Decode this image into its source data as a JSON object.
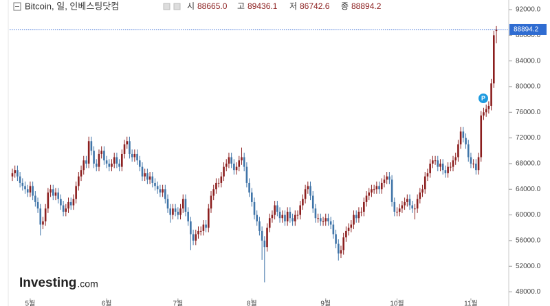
{
  "chart_data": {
    "type": "candlestick",
    "title": "Bitcoin, 일, 인베스팅닷컴",
    "header_labels": [
      "시",
      "고",
      "저",
      "종"
    ],
    "last_value_labels": [
      "88665.0",
      "89436.1",
      "86742.6",
      "88894.2"
    ],
    "brand": [
      "Investing",
      ".com"
    ],
    "marker": "P",
    "up_color": "#8b1e1e",
    "down_color": "#3f74a8",
    "ylim": [
      47200,
      93500
    ],
    "yticks": [
      {
        "value": 48000,
        "label": "48000.0"
      },
      {
        "value": 52000,
        "label": "52000.0"
      },
      {
        "value": 56000,
        "label": "56000.0"
      },
      {
        "value": 60000,
        "label": "60000.0"
      },
      {
        "value": 64000,
        "label": "64000.0"
      },
      {
        "value": 68000,
        "label": "68000.0"
      },
      {
        "value": 72000,
        "label": "72000.0"
      },
      {
        "value": 76000,
        "label": "76000.0"
      },
      {
        "value": 80000,
        "label": "80000.0"
      },
      {
        "value": 84000,
        "label": "84000.0"
      },
      {
        "value": 88000,
        "label": "88000.0"
      },
      {
        "value": 92000,
        "label": "92000.0"
      }
    ],
    "categories": [
      null,
      null,
      null,
      null,
      null,
      null,
      null,
      "5월",
      null,
      null,
      null,
      null,
      null,
      null,
      null,
      null,
      null,
      null,
      null,
      null,
      null,
      null,
      null,
      null,
      null,
      null,
      null,
      null,
      null,
      null,
      null,
      null,
      null,
      null,
      null,
      null,
      null,
      "6월",
      null,
      null,
      null,
      null,
      null,
      null,
      null,
      null,
      null,
      null,
      null,
      null,
      null,
      null,
      null,
      null,
      null,
      null,
      null,
      null,
      null,
      null,
      null,
      null,
      null,
      null,
      null,
      "7월",
      null,
      null,
      null,
      null,
      null,
      null,
      null,
      null,
      null,
      null,
      null,
      null,
      null,
      null,
      null,
      null,
      null,
      null,
      null,
      null,
      null,
      null,
      null,
      null,
      null,
      null,
      null,
      null,
      "8월",
      null,
      null,
      null,
      null,
      null,
      null,
      null,
      null,
      null,
      null,
      null,
      null,
      null,
      null,
      null,
      null,
      null,
      null,
      null,
      null,
      null,
      null,
      null,
      null,
      null,
      null,
      null,
      null,
      "9월",
      null,
      null,
      null,
      null,
      null,
      null,
      null,
      null,
      null,
      null,
      null,
      null,
      null,
      null,
      null,
      null,
      null,
      null,
      null,
      null,
      null,
      null,
      null,
      null,
      null,
      null,
      null,
      "10월",
      null,
      null,
      null,
      null,
      null,
      null,
      null,
      null,
      null,
      null,
      null,
      null,
      null,
      null,
      null,
      null,
      null,
      null,
      null,
      null,
      null,
      null,
      null,
      null,
      null,
      null,
      null,
      null,
      "11월",
      null,
      null,
      null,
      null,
      null,
      null,
      null,
      null,
      null,
      null
    ],
    "open": [
      66000,
      66500,
      67000,
      66000,
      65000,
      64500,
      64000,
      63500,
      64500,
      63000,
      62000,
      61000,
      58500,
      59000,
      61000,
      63500,
      64000,
      63000,
      63500,
      62500,
      61500,
      60500,
      61000,
      62000,
      61500,
      62500,
      64500,
      66000,
      67000,
      68500,
      68000,
      71500,
      70000,
      68000,
      67500,
      69500,
      70000,
      68500,
      68000,
      67500,
      68000,
      69000,
      68000,
      67500,
      69500,
      71000,
      71500,
      69500,
      69000,
      69500,
      68500,
      67500,
      66000,
      66500,
      65500,
      66000,
      65000,
      64500,
      64000,
      63500,
      64000,
      62500,
      61000,
      60000,
      61000,
      60500,
      60000,
      61000,
      62500,
      60500,
      59000,
      57000,
      56000,
      57000,
      57500,
      57500,
      58500,
      58000,
      61000,
      63000,
      64000,
      65000,
      65000,
      66000,
      67500,
      68000,
      69000,
      68000,
      67000,
      67500,
      68500,
      69000,
      67500,
      65000,
      63500,
      62000,
      60000,
      59000,
      57500,
      56000,
      55000,
      58000,
      59500,
      60000,
      61500,
      60500,
      59500,
      60000,
      59000,
      60500,
      59500,
      59000,
      60000,
      60000,
      61500,
      62500,
      64000,
      64500,
      63000,
      61000,
      59500,
      59500,
      59000,
      59000,
      59500,
      59000,
      58500,
      57000,
      55500,
      54000,
      54500,
      56500,
      57500,
      58000,
      58500,
      60000,
      59500,
      60500,
      60500,
      62000,
      63000,
      63500,
      64000,
      64000,
      64500,
      64000,
      65000,
      65500,
      66000,
      65500,
      62000,
      60500,
      60500,
      61000,
      61500,
      62000,
      62500,
      61500,
      61000,
      61000,
      62500,
      63500,
      64000,
      66000,
      66500,
      68000,
      68500,
      68500,
      67500,
      68000,
      67000,
      66500,
      67500,
      67500,
      68500,
      69000,
      71000,
      73000,
      72000,
      71000,
      69000,
      68000,
      68000,
      67000,
      69000,
      75500,
      76000,
      76500,
      77000,
      80500,
      88665.0
    ],
    "high": [
      67200,
      67700,
      67700,
      66700,
      65700,
      65200,
      64700,
      65200,
      65200,
      63700,
      62700,
      61700,
      59700,
      61700,
      64200,
      64700,
      64700,
      64200,
      64200,
      63200,
      62200,
      61700,
      62700,
      62700,
      63200,
      65200,
      66700,
      67700,
      69200,
      69200,
      72200,
      72200,
      70700,
      68700,
      70200,
      70700,
      70700,
      69200,
      68700,
      68700,
      69700,
      69700,
      68700,
      70200,
      71700,
      72200,
      72200,
      70200,
      70200,
      70200,
      69200,
      68200,
      67200,
      67200,
      66700,
      66700,
      65700,
      65200,
      64700,
      64700,
      64700,
      63200,
      61700,
      61700,
      61700,
      61200,
      61700,
      63200,
      63200,
      61200,
      59700,
      57700,
      57700,
      58200,
      58200,
      59200,
      59200,
      61700,
      63700,
      64700,
      65700,
      65700,
      66700,
      68200,
      68700,
      69700,
      69700,
      68700,
      68200,
      69200,
      70500,
      69700,
      68200,
      65700,
      64200,
      62700,
      60700,
      59700,
      58200,
      56700,
      58700,
      60200,
      60700,
      62200,
      62200,
      61200,
      60700,
      60700,
      61200,
      61200,
      60200,
      60700,
      60700,
      62200,
      63200,
      64700,
      65200,
      65200,
      63700,
      61700,
      60200,
      60200,
      59700,
      60200,
      60200,
      59700,
      59200,
      57700,
      56200,
      55200,
      57200,
      58200,
      58700,
      59200,
      60700,
      60700,
      61200,
      61200,
      62700,
      63700,
      64200,
      64700,
      64700,
      65200,
      65200,
      65700,
      66200,
      66700,
      66700,
      66200,
      62700,
      61200,
      61700,
      62200,
      62700,
      63200,
      63200,
      62200,
      61700,
      63200,
      64200,
      64700,
      66700,
      67200,
      68700,
      69200,
      69200,
      69200,
      68700,
      68700,
      67700,
      68200,
      68200,
      69200,
      69700,
      71700,
      73700,
      73700,
      72700,
      71700,
      69700,
      68700,
      68700,
      69700,
      76200,
      76700,
      77200,
      77700,
      81200,
      88700,
      89436.1
    ],
    "low": [
      65300,
      65800,
      65300,
      64300,
      63800,
      63300,
      62800,
      62800,
      62300,
      61300,
      60300,
      56800,
      57800,
      58300,
      60300,
      62800,
      62300,
      62300,
      61800,
      60800,
      59800,
      59800,
      60300,
      60800,
      60800,
      61800,
      63800,
      65300,
      66300,
      67300,
      67300,
      69300,
      67300,
      66800,
      66800,
      68800,
      67800,
      67300,
      66800,
      66800,
      67300,
      67300,
      66800,
      66800,
      68800,
      70300,
      68800,
      68300,
      68300,
      67800,
      66800,
      65300,
      65300,
      64800,
      64800,
      64300,
      63800,
      63300,
      62800,
      62800,
      61800,
      60300,
      58800,
      59300,
      59800,
      59300,
      59300,
      60300,
      59800,
      58300,
      54500,
      55300,
      55300,
      56300,
      56800,
      56800,
      57300,
      57300,
      60300,
      62300,
      63300,
      64300,
      64300,
      65300,
      66800,
      67300,
      67300,
      66300,
      66300,
      66800,
      67800,
      66800,
      64300,
      62800,
      61300,
      59300,
      58300,
      56800,
      53000,
      49500,
      54300,
      57300,
      58800,
      59300,
      59800,
      58800,
      58800,
      58300,
      58300,
      58800,
      58300,
      58300,
      59300,
      59300,
      60800,
      61800,
      63300,
      62300,
      60300,
      58800,
      58800,
      58300,
      58300,
      58300,
      58300,
      57800,
      56300,
      54800,
      52900,
      53300,
      53800,
      55800,
      56800,
      57300,
      57800,
      58800,
      58800,
      59800,
      59800,
      61300,
      62300,
      62800,
      63300,
      63300,
      63300,
      63300,
      64300,
      64800,
      64800,
      61300,
      59800,
      59800,
      59800,
      60300,
      60800,
      61300,
      60800,
      60300,
      59300,
      60300,
      61800,
      62800,
      63300,
      65300,
      65800,
      67300,
      67800,
      66800,
      66800,
      66300,
      65800,
      65800,
      66800,
      66800,
      67800,
      68300,
      70300,
      71300,
      70300,
      68300,
      67300,
      67300,
      66300,
      66300,
      68300,
      74800,
      75300,
      75800,
      76300,
      79800,
      86742.6
    ],
    "close": [
      66500,
      67000,
      66000,
      65000,
      64500,
      64000,
      63500,
      64500,
      63000,
      62000,
      61000,
      58500,
      59000,
      61000,
      63500,
      64000,
      63000,
      63500,
      62500,
      61500,
      60500,
      61000,
      62000,
      61500,
      62500,
      64500,
      66000,
      67000,
      68500,
      68000,
      71500,
      70000,
      68000,
      67500,
      69500,
      70000,
      68500,
      68000,
      67500,
      68000,
      69000,
      68000,
      67500,
      69500,
      71000,
      71500,
      69500,
      69000,
      69500,
      68500,
      67500,
      66000,
      66500,
      65500,
      66000,
      65000,
      64500,
      64000,
      63500,
      64000,
      62500,
      61000,
      60000,
      61000,
      60500,
      60000,
      61000,
      62500,
      60500,
      59000,
      57000,
      56000,
      57000,
      57500,
      57500,
      58500,
      58000,
      61000,
      63000,
      64000,
      65000,
      65000,
      66000,
      67500,
      68000,
      69000,
      68000,
      67000,
      67500,
      68500,
      69000,
      67500,
      65000,
      63500,
      62000,
      60000,
      59000,
      57500,
      56000,
      55000,
      58000,
      59500,
      60000,
      61500,
      60500,
      59500,
      60000,
      59000,
      60500,
      59500,
      59000,
      60000,
      60000,
      61500,
      62500,
      64000,
      64500,
      63000,
      61000,
      59500,
      59500,
      59000,
      59000,
      59500,
      59000,
      58500,
      57000,
      55500,
      54000,
      54500,
      56500,
      57500,
      58000,
      58500,
      60000,
      59500,
      60500,
      60500,
      62000,
      63000,
      63500,
      64000,
      64000,
      64500,
      64000,
      65000,
      65500,
      66000,
      65500,
      62000,
      60500,
      60500,
      61000,
      61500,
      62000,
      62500,
      61500,
      61000,
      61000,
      62500,
      63500,
      64000,
      66000,
      66500,
      68000,
      68500,
      68500,
      67500,
      68000,
      67000,
      66500,
      67500,
      67500,
      68500,
      69000,
      71000,
      73000,
      72000,
      71000,
      69000,
      68000,
      68000,
      67000,
      69000,
      75500,
      76000,
      76500,
      77000,
      80500,
      88000,
      88894.2
    ]
  }
}
